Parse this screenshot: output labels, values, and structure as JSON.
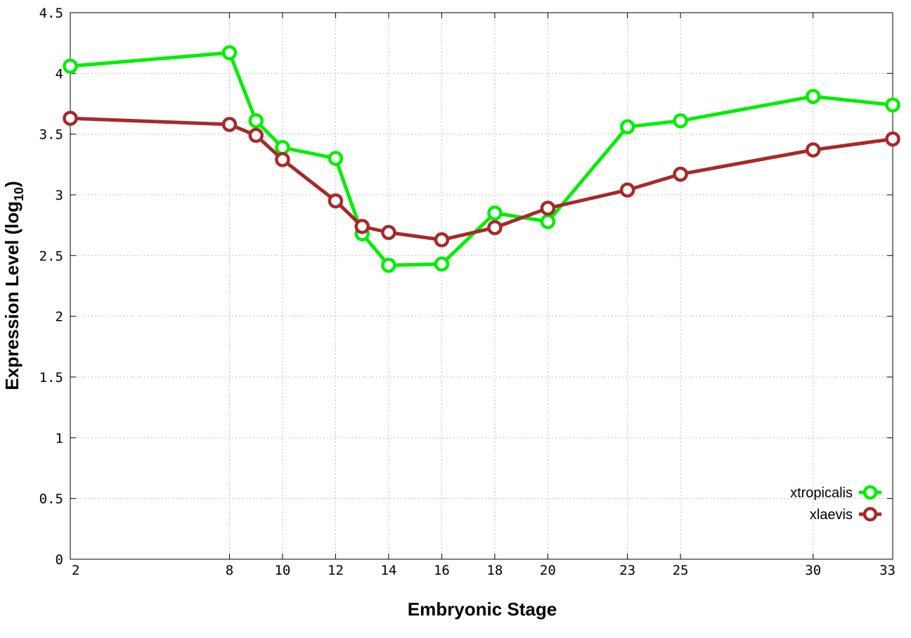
{
  "chart_data": {
    "type": "line",
    "title": "",
    "xlabel": "Embryonic Stage",
    "ylabel_main": "Expression Level (log",
    "ylabel_sub": "10",
    "ylabel_close": ")",
    "ylim": [
      0,
      4.5
    ],
    "y_ticks": [
      0,
      0.5,
      1,
      1.5,
      2,
      2.5,
      3,
      3.5,
      4,
      4.5
    ],
    "y_tick_labels": [
      "0",
      "0.5",
      "1",
      "1.5",
      "2",
      "2.5",
      "3",
      "3.5",
      "4",
      "4.5"
    ],
    "x_ticks": [
      2,
      8,
      10,
      12,
      14,
      16,
      18,
      20,
      23,
      25,
      30,
      33
    ],
    "x_tick_labels": [
      "2",
      "8",
      "10",
      "12",
      "14",
      "16",
      "18",
      "20",
      "23",
      "25",
      "30",
      "33"
    ],
    "grid": true,
    "legend_position": "bottom-right",
    "categories": [
      "2",
      "8",
      "9",
      "10",
      "12",
      "13",
      "14",
      "16",
      "18",
      "20",
      "23",
      "25",
      "30",
      "33"
    ],
    "series": [
      {
        "name": "xtropicalis",
        "color": "#00ee00",
        "values": [
          4.06,
          4.17,
          3.61,
          3.39,
          3.3,
          2.68,
          2.42,
          2.43,
          2.85,
          2.78,
          3.56,
          3.61,
          3.81,
          3.74
        ]
      },
      {
        "name": "xlaevis",
        "color": "#a52a2a",
        "values": [
          3.63,
          3.58,
          3.49,
          3.29,
          2.95,
          2.74,
          2.69,
          2.63,
          2.73,
          2.89,
          3.04,
          3.17,
          3.37,
          3.46
        ]
      }
    ]
  }
}
